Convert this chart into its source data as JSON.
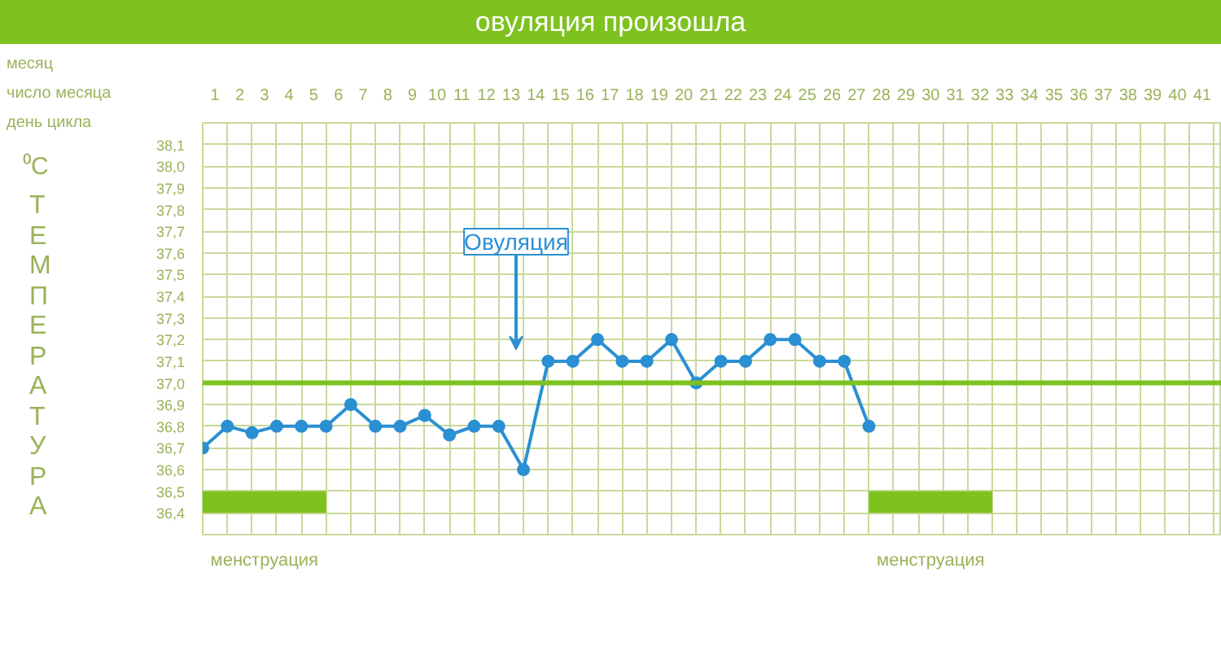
{
  "chart_data": {
    "type": "line",
    "title": "овуляция произошла",
    "xlabel": "число месяца",
    "ylabel": "ТЕМПЕРАТУРА",
    "annotations": [
      "месяц",
      "день цикла",
      "⁰C",
      "Овуляция"
    ],
    "x": [
      0.5,
      1.5,
      2.5,
      3.5,
      4.5,
      5.5,
      6.5,
      7.5,
      8.5,
      9.5,
      10.5,
      11.5,
      12.5,
      13.5,
      14.5,
      15.5,
      16.5,
      17.5,
      18.5,
      19.5,
      20.5,
      21.5,
      22.5,
      23.5,
      24.5,
      25.5,
      26.5,
      27.5
    ],
    "series": [
      {
        "color": "#2b8fd3",
        "values": [
          36.7,
          36.8,
          36.77,
          36.8,
          36.8,
          36.8,
          36.9,
          36.8,
          36.8,
          36.85,
          36.76,
          36.8,
          36.8,
          36.6,
          37.1,
          37.1,
          37.2,
          37.1,
          37.1,
          37.2,
          37.0,
          37.1,
          37.1,
          37.2,
          37.2,
          37.1,
          37.1,
          36.8
        ]
      }
    ],
    "marker": "circle",
    "line_style": "solid",
    "grid": true,
    "xlim": [
      0.5,
      41.8
    ],
    "ylim": [
      36.3,
      38.2
    ],
    "xticks": [
      1,
      2,
      3,
      4,
      5,
      6,
      7,
      8,
      9,
      10,
      11,
      12,
      13,
      14,
      15,
      16,
      17,
      18,
      19,
      20,
      21,
      22,
      23,
      24,
      25,
      26,
      27,
      28,
      29,
      30,
      31,
      32,
      33,
      34,
      35,
      36,
      37,
      38,
      39,
      40,
      41
    ],
    "yticks": [
      {
        "value": 36.4,
        "label": "36,4"
      },
      {
        "value": 36.5,
        "label": "36,5"
      },
      {
        "value": 36.6,
        "label": "36,6"
      },
      {
        "value": 36.7,
        "label": "36,7"
      },
      {
        "value": 36.8,
        "label": "36,8"
      },
      {
        "value": 36.9,
        "label": "36,9"
      },
      {
        "value": 37.0,
        "label": "37,0"
      },
      {
        "value": 37.1,
        "label": "37,1"
      },
      {
        "value": 37.2,
        "label": "37,2"
      },
      {
        "value": 37.3,
        "label": "37,3"
      },
      {
        "value": 37.4,
        "label": "37,4"
      },
      {
        "value": 37.5,
        "label": "37,5"
      },
      {
        "value": 37.6,
        "label": "37,6"
      },
      {
        "value": 37.7,
        "label": "37,7"
      },
      {
        "value": 37.8,
        "label": "37,8"
      },
      {
        "value": 37.9,
        "label": "37,9"
      },
      {
        "value": 38.0,
        "label": "38,0"
      },
      {
        "value": 38.1,
        "label": "38,1"
      }
    ],
    "ref_lines": [
      {
        "axis": "y",
        "value": 37.0,
        "color": "#7dc21e"
      }
    ],
    "bands": [
      {
        "axis": "x",
        "from": 0.5,
        "to": 5.5,
        "label": "менструация",
        "color": "#7dc21e"
      },
      {
        "axis": "x",
        "from": 27.5,
        "to": 32.5,
        "label": "менструация",
        "color": "#7dc21e"
      }
    ]
  }
}
